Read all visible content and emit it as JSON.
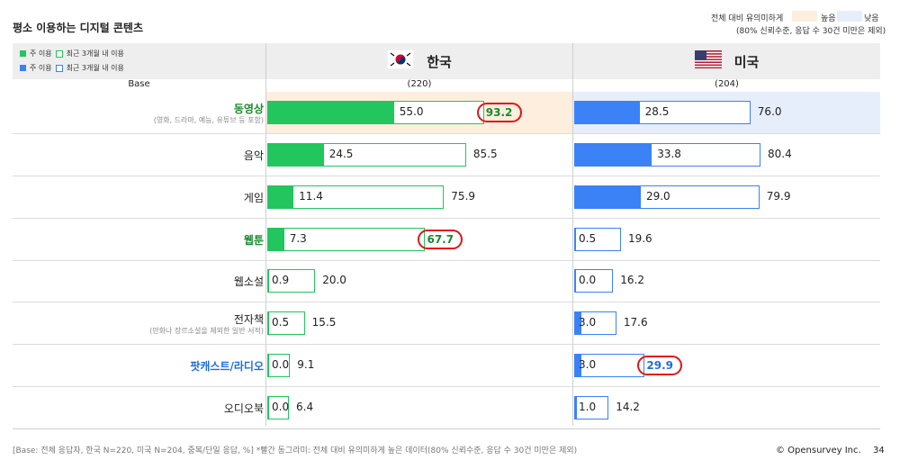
{
  "page": {
    "title": "평소 이용하는 디지털 콘텐츠",
    "significance_label": "전체 대비 유의미하게",
    "significance_note": "(80% 신뢰수준, 응답 수 30건 미만은 제외)",
    "high_label": "높음",
    "low_label": "낮음",
    "high_color": "#fdeedd",
    "low_color": "#e7eefb",
    "base_label": "Base",
    "footnote": "[Base: 전체 응답자, 한국 N=220, 미국 N=204, 중복/단일 응답, %] *빨간 동그라미: 전체 대비 유의미하게 높은 데이터(80% 신뢰수준, 응답 수 30건 미만은 제외)",
    "copyright": "© Opensurvey Inc.",
    "page_number": "34"
  },
  "legend": {
    "main_use": "주 이용",
    "recent_use": "최근 3개월 내 이용"
  },
  "colors": {
    "korea": "#22c55e",
    "usa": "#3b82f6",
    "circle": "#e01616",
    "green_text": "#1a8a2e",
    "blue_text": "#1f6fdc"
  },
  "chart_data": {
    "type": "bar",
    "orientation": "horizontal",
    "categories": [
      {
        "name": "동영상",
        "sub": "(영화, 드라마, 예능, 유튜브 등 포함)",
        "highlight": "green",
        "bg_kr": "high",
        "bg_us": "low"
      },
      {
        "name": "음악",
        "sub": "",
        "highlight": "",
        "bg_kr": "",
        "bg_us": ""
      },
      {
        "name": "게임",
        "sub": "",
        "highlight": "",
        "bg_kr": "",
        "bg_us": ""
      },
      {
        "name": "웹툰",
        "sub": "",
        "highlight": "green",
        "bg_kr": "",
        "bg_us": ""
      },
      {
        "name": "웹소설",
        "sub": "",
        "highlight": "",
        "bg_kr": "",
        "bg_us": ""
      },
      {
        "name": "전자책",
        "sub": "(만화나 장르소설을 제외한 일반 서적)",
        "highlight": "",
        "bg_kr": "",
        "bg_us": ""
      },
      {
        "name": "팟캐스트/라디오",
        "sub": "",
        "highlight": "blue",
        "bg_kr": "",
        "bg_us": ""
      },
      {
        "name": "오디오북",
        "sub": "",
        "highlight": "",
        "bg_kr": "",
        "bg_us": ""
      }
    ],
    "groups": [
      {
        "country": "한국",
        "base": "(220)",
        "flag": "korea-flag-icon",
        "series": [
          {
            "name": "주 이용",
            "values": [
              55.0,
              24.5,
              11.4,
              7.3,
              0.9,
              0.5,
              0.0,
              0.0
            ]
          },
          {
            "name": "최근 3개월 내 이용",
            "values": [
              93.2,
              85.5,
              75.9,
              67.7,
              20.0,
              15.5,
              9.1,
              6.4
            ]
          }
        ],
        "circled": [
          true,
          false,
          false,
          true,
          false,
          false,
          false,
          false
        ]
      },
      {
        "country": "미국",
        "base": "(204)",
        "flag": "usa-flag-icon",
        "series": [
          {
            "name": "주 이용",
            "values": [
              28.5,
              33.8,
              29.0,
              0.5,
              0.0,
              3.0,
              3.0,
              1.0
            ]
          },
          {
            "name": "최근 3개월 내 이용",
            "values": [
              76.0,
              80.4,
              79.9,
              19.6,
              16.2,
              17.6,
              29.9,
              14.2
            ]
          }
        ],
        "circled": [
          false,
          false,
          false,
          false,
          false,
          false,
          true,
          false
        ]
      }
    ],
    "xlim": [
      0,
      100
    ],
    "unit": "%"
  }
}
